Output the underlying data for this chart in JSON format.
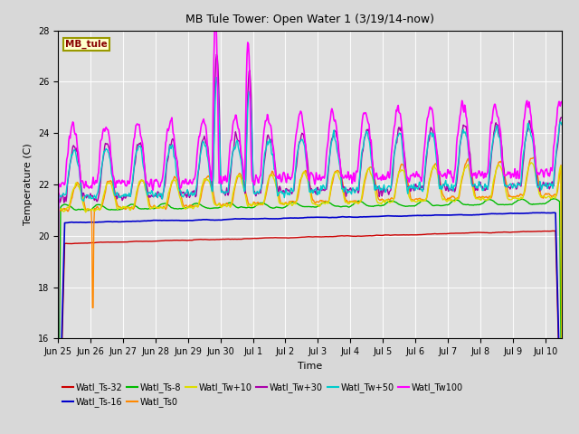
{
  "title": "MB Tule Tower: Open Water 1 (3/19/14-now)",
  "xlabel": "Time",
  "ylabel": "Temperature (C)",
  "ylim": [
    16,
    28
  ],
  "yticks": [
    16,
    18,
    20,
    22,
    24,
    26,
    28
  ],
  "fig_bg_color": "#d8d8d8",
  "plot_bg_color": "#e0e0e0",
  "legend_label": "MB_tule",
  "series_colors": {
    "Watl_Ts-32": "#cc0000",
    "Watl_Ts-16": "#0000cc",
    "Watl_Ts-8": "#00bb00",
    "Watl_Ts0": "#ff8800",
    "Watl_Tw+10": "#dddd00",
    "Watl_Tw+30": "#aa00aa",
    "Watl_Tw+50": "#00cccc",
    "Watl_Tw100": "#ff00ff"
  },
  "xtick_labels": [
    "Jun 25",
    "Jun 26",
    "Jun 27",
    "Jun 28",
    "Jun 29",
    "Jun 30",
    "Jul 1",
    "Jul 2",
    "Jul 3",
    "Jul 4",
    "Jul 5",
    "Jul 6",
    "Jul 7",
    "Jul 8",
    "Jul 9",
    "Jul 10"
  ],
  "legend_order": [
    "Watl_Ts-32",
    "Watl_Ts-16",
    "Watl_Ts-8",
    "Watl_Ts0",
    "Watl_Tw+10",
    "Watl_Tw+30",
    "Watl_Tw+50",
    "Watl_Tw100"
  ]
}
